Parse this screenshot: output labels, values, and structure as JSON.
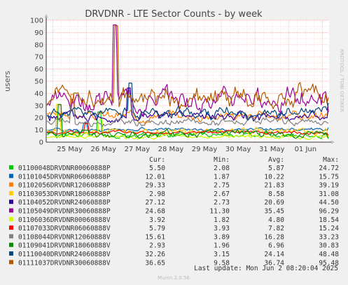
{
  "chart_data": {
    "type": "line",
    "title": "DRVDNR - LTE Sector Counts - by week",
    "ylabel": "users",
    "ylim": [
      0,
      100
    ],
    "yticks": [
      0,
      10,
      20,
      30,
      40,
      50,
      60,
      70,
      80,
      90,
      100
    ],
    "xticks": [
      "25 May",
      "26 May",
      "27 May",
      "28 May",
      "29 May",
      "30 May",
      "31 May",
      "01 Jun"
    ],
    "grid": true,
    "side_label": "RRDTOOL / TOBI OETIKER",
    "table_headers": [
      "Cur:",
      "Min:",
      "Avg:",
      "Max:"
    ],
    "series": [
      {
        "name": "01100048DRVDNR00060888P",
        "color": "#00cc00",
        "cur": "5.50",
        "min": "2.08",
        "avg": "5.87",
        "max": "24.72"
      },
      {
        "name": "01101045DRVDNR06060888P",
        "color": "#0066b3",
        "cur": "12.01",
        "min": "1.87",
        "avg": "10.22",
        "max": "15.75"
      },
      {
        "name": "01102056DRVDNR12060888P",
        "color": "#ff8000",
        "cur": "29.33",
        "min": "2.75",
        "avg": "21.83",
        "max": "39.19"
      },
      {
        "name": "01103053DRVDNR18060888P",
        "color": "#ffcc00",
        "cur": "2.98",
        "min": "2.67",
        "avg": "8.58",
        "max": "31.08"
      },
      {
        "name": "01104052DRVDNR24060888P",
        "color": "#330099",
        "cur": "27.12",
        "min": "2.73",
        "avg": "20.69",
        "max": "44.50"
      },
      {
        "name": "01105049DRVDNR30060888P",
        "color": "#990099",
        "cur": "24.68",
        "min": "11.30",
        "avg": "35.45",
        "max": "96.29"
      },
      {
        "name": "01106036DRVDNR00060888V",
        "color": "#ccff00",
        "cur": "3.92",
        "min": "1.82",
        "avg": "4.80",
        "max": "18.54"
      },
      {
        "name": "01107033DRVDNR06060888V",
        "color": "#ff0000",
        "cur": "5.79",
        "min": "3.93",
        "avg": "7.82",
        "max": "15.24"
      },
      {
        "name": "01108044DRVDNR12060888V",
        "color": "#808080",
        "cur": "15.61",
        "min": "3.89",
        "avg": "16.28",
        "max": "33.23"
      },
      {
        "name": "01109041DRVDNR18060888V",
        "color": "#008f00",
        "cur": "2.93",
        "min": "1.96",
        "avg": "6.96",
        "max": "30.83"
      },
      {
        "name": "01110040DRVDNR24060888V",
        "color": "#00487d",
        "cur": "32.26",
        "min": "3.15",
        "avg": "24.14",
        "max": "48.48"
      },
      {
        "name": "01111037DRVDNR30060888V",
        "color": "#b35a00",
        "cur": "36.65",
        "min": "9.58",
        "avg": "36.74",
        "max": "95.48"
      }
    ],
    "last_update": "Last update: Mon Jun  2 08:20:04 2025",
    "footer": "Munin 2.0.56"
  }
}
